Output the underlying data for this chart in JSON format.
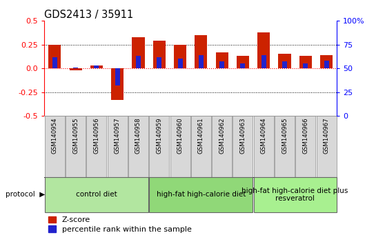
{
  "title": "GDS2413 / 35911",
  "samples": [
    "GSM140954",
    "GSM140955",
    "GSM140956",
    "GSM140957",
    "GSM140958",
    "GSM140959",
    "GSM140960",
    "GSM140961",
    "GSM140962",
    "GSM140963",
    "GSM140964",
    "GSM140965",
    "GSM140966",
    "GSM140967"
  ],
  "zscore": [
    0.25,
    -0.02,
    0.03,
    -0.33,
    0.33,
    0.29,
    0.25,
    0.35,
    0.17,
    0.13,
    0.38,
    0.15,
    0.13,
    0.14
  ],
  "percentile": [
    0.12,
    0.01,
    0.03,
    -0.18,
    0.13,
    0.12,
    0.1,
    0.14,
    0.07,
    0.05,
    0.14,
    0.07,
    0.05,
    0.08
  ],
  "groups": [
    {
      "label": "control diet",
      "start": 0,
      "end": 4,
      "color": "#b2e6a0"
    },
    {
      "label": "high-fat high-calorie diet",
      "start": 5,
      "end": 9,
      "color": "#90d878"
    },
    {
      "label": "high-fat high-calorie diet plus\nresveratrol",
      "start": 10,
      "end": 13,
      "color": "#a8f090"
    }
  ],
  "bar_color_red": "#cc2200",
  "bar_color_blue": "#2222cc",
  "ylim": [
    -0.5,
    0.5
  ],
  "yticks_left": [
    -0.5,
    -0.25,
    0.0,
    0.25,
    0.5
  ],
  "yticks_right": [
    0,
    25,
    50,
    75,
    100
  ],
  "hlines_dotted": [
    0.25,
    -0.25
  ],
  "background_color": "#ffffff",
  "group_label_fontsize": 7.5,
  "sample_label_fontsize": 6.2,
  "title_fontsize": 10.5,
  "legend_fontsize": 8,
  "protocol_label": "protocol",
  "bar_width": 0.6
}
